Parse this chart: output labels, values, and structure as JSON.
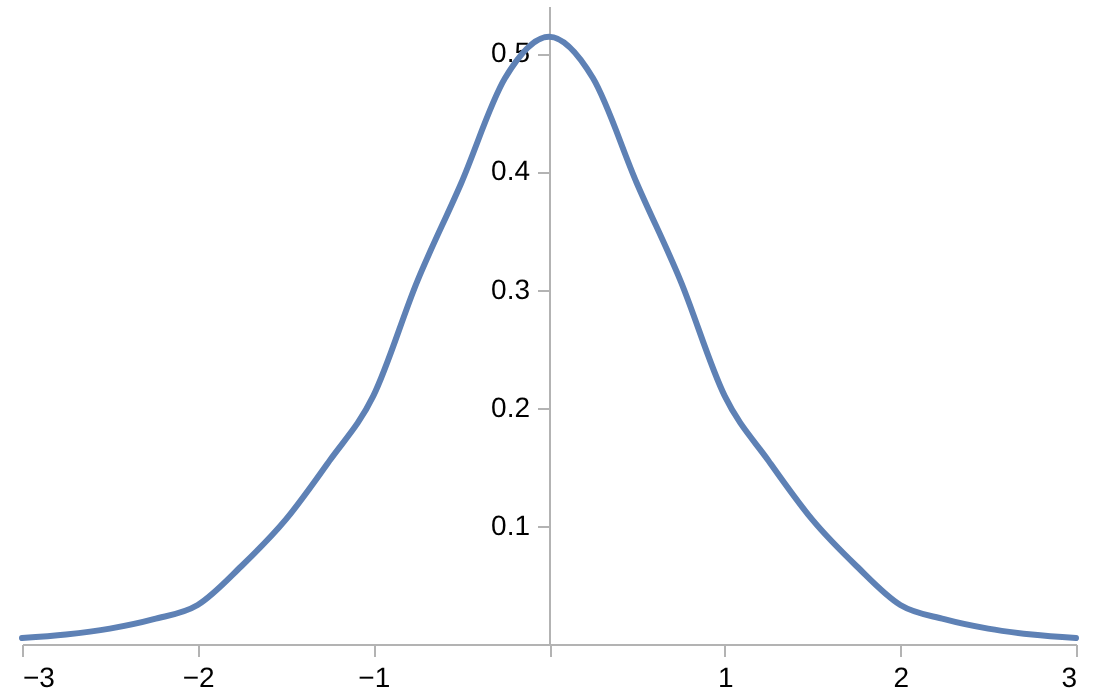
{
  "chart_data": {
    "type": "line",
    "x": [
      -3,
      -2.75,
      -2.5,
      -2.25,
      -2,
      -1.75,
      -1.5,
      -1.25,
      -1,
      -0.75,
      -0.5,
      -0.25,
      0,
      0.25,
      0.5,
      0.75,
      1,
      1.25,
      1.5,
      1.75,
      2,
      2.25,
      2.5,
      2.75,
      3
    ],
    "series": [
      {
        "color": "#5e81b5",
        "values": [
          0.005,
          0.008,
          0.013,
          0.021,
          0.033,
          0.066,
          0.105,
          0.155,
          0.21,
          0.307,
          0.39,
          0.479,
          0.514,
          0.479,
          0.39,
          0.307,
          0.21,
          0.155,
          0.105,
          0.066,
          0.033,
          0.021,
          0.013,
          0.008,
          0.005
        ]
      }
    ],
    "xlim": [
      -3,
      3
    ],
    "ylim": [
      0,
      0.54
    ],
    "xticks": [
      -3,
      -2,
      -1,
      {
        "value": 0,
        "label": null
      },
      1,
      2,
      3
    ],
    "yticks": [
      0.1,
      0.2,
      0.3,
      0.4,
      0.5
    ],
    "grid": false,
    "marker": "none",
    "line_style": "solid"
  }
}
